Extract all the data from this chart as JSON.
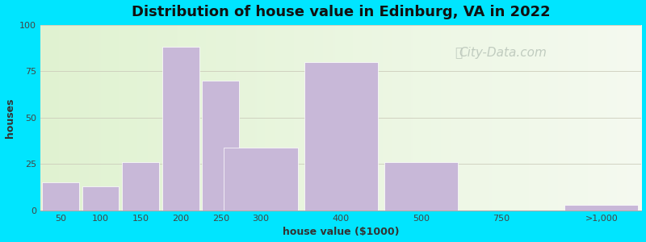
{
  "title": "Distribution of house value in Edinburg, VA in 2022",
  "xlabel": "house value ($1000)",
  "ylabel": "houses",
  "bar_color": "#c8b8d8",
  "bar_edgecolor": "#ffffff",
  "background_outer": "#00e5ff",
  "yticks": [
    0,
    25,
    50,
    75,
    100
  ],
  "ylim": [
    0,
    100
  ],
  "xlim": [
    -0.5,
    14.5
  ],
  "bar_positions": [
    0,
    1,
    2,
    3,
    4,
    5,
    7,
    9,
    11,
    13.5
  ],
  "bar_widths": [
    1,
    1,
    1,
    1,
    1,
    2,
    2,
    2,
    2,
    2
  ],
  "tick_positions": [
    0,
    1,
    2,
    3,
    4,
    5,
    7,
    9,
    11,
    13.5
  ],
  "tick_labels": [
    "50",
    "100",
    "150",
    "200",
    "250",
    "300",
    "400",
    "500",
    "750",
    ">1,000"
  ],
  "values": [
    15,
    13,
    26,
    88,
    70,
    34,
    80,
    26,
    0,
    3
  ],
  "title_fontsize": 13,
  "axis_fontsize": 9,
  "tick_fontsize": 8,
  "watermark_text": "City-Data.com",
  "watermark_color": "#b8c4b8",
  "watermark_fontsize": 11
}
